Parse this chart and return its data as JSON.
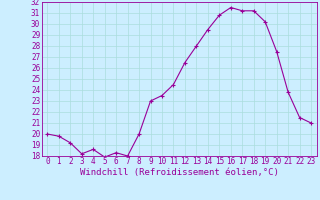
{
  "x": [
    0,
    1,
    2,
    3,
    4,
    5,
    6,
    7,
    8,
    9,
    10,
    11,
    12,
    13,
    14,
    15,
    16,
    17,
    18,
    19,
    20,
    21,
    22,
    23
  ],
  "y": [
    20.0,
    19.8,
    19.2,
    18.2,
    18.6,
    17.9,
    18.3,
    18.0,
    20.0,
    23.0,
    23.5,
    24.5,
    26.5,
    28.0,
    29.5,
    30.8,
    31.5,
    31.2,
    31.2,
    30.2,
    27.5,
    23.8,
    21.5,
    21.0
  ],
  "line_color": "#990099",
  "marker": "+",
  "marker_size": 3,
  "bg_color": "#cceeff",
  "grid_color": "#aadddd",
  "xlabel": "Windchill (Refroidissement éolien,°C)",
  "ylim": [
    18,
    32
  ],
  "xlim": [
    -0.5,
    23.5
  ],
  "yticks": [
    18,
    19,
    20,
    21,
    22,
    23,
    24,
    25,
    26,
    27,
    28,
    29,
    30,
    31,
    32
  ],
  "xticks": [
    0,
    1,
    2,
    3,
    4,
    5,
    6,
    7,
    8,
    9,
    10,
    11,
    12,
    13,
    14,
    15,
    16,
    17,
    18,
    19,
    20,
    21,
    22,
    23
  ],
  "tick_label_fontsize": 5.5,
  "xlabel_fontsize": 6.5
}
